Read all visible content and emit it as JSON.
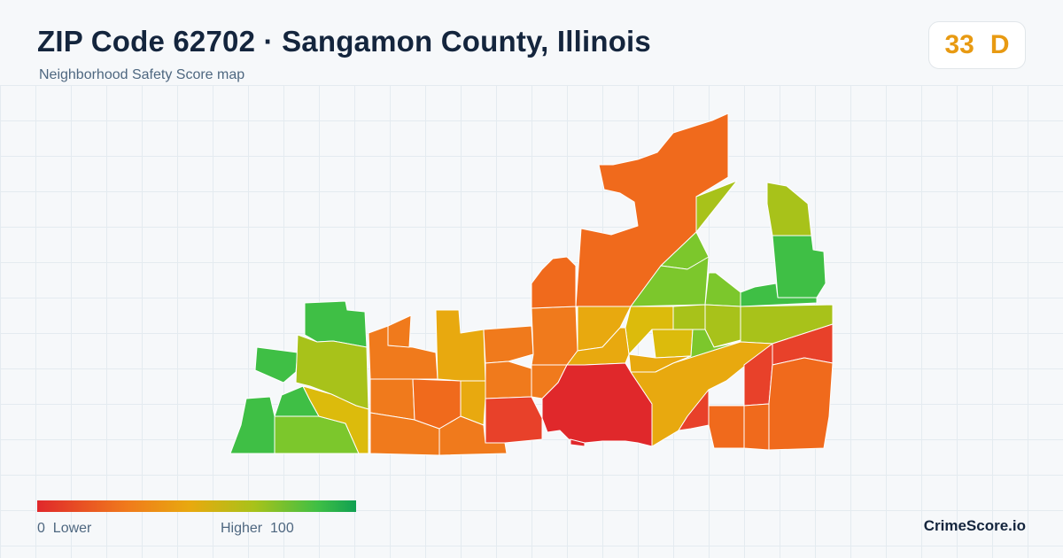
{
  "header": {
    "title": "ZIP Code 62702 · Sangamon County, Illinois",
    "subtitle": "Neighborhood Safety Score map"
  },
  "score": {
    "value": "33",
    "grade": "D",
    "color": "#e89a12"
  },
  "legend": {
    "min_value": "0",
    "min_label": "Lower",
    "max_label": "Higher",
    "max_value": "100"
  },
  "brand": "CrimeScore.io",
  "colors": {
    "red": "#e0282b",
    "red_orange": "#e8412a",
    "orange": "#f0661c",
    "orange2": "#f07a1c",
    "amber": "#e8a90f",
    "yellow": "#dcbb0c",
    "yellow_green": "#a8c21a",
    "light_green": "#7cc72c",
    "green": "#3fbf45"
  }
}
